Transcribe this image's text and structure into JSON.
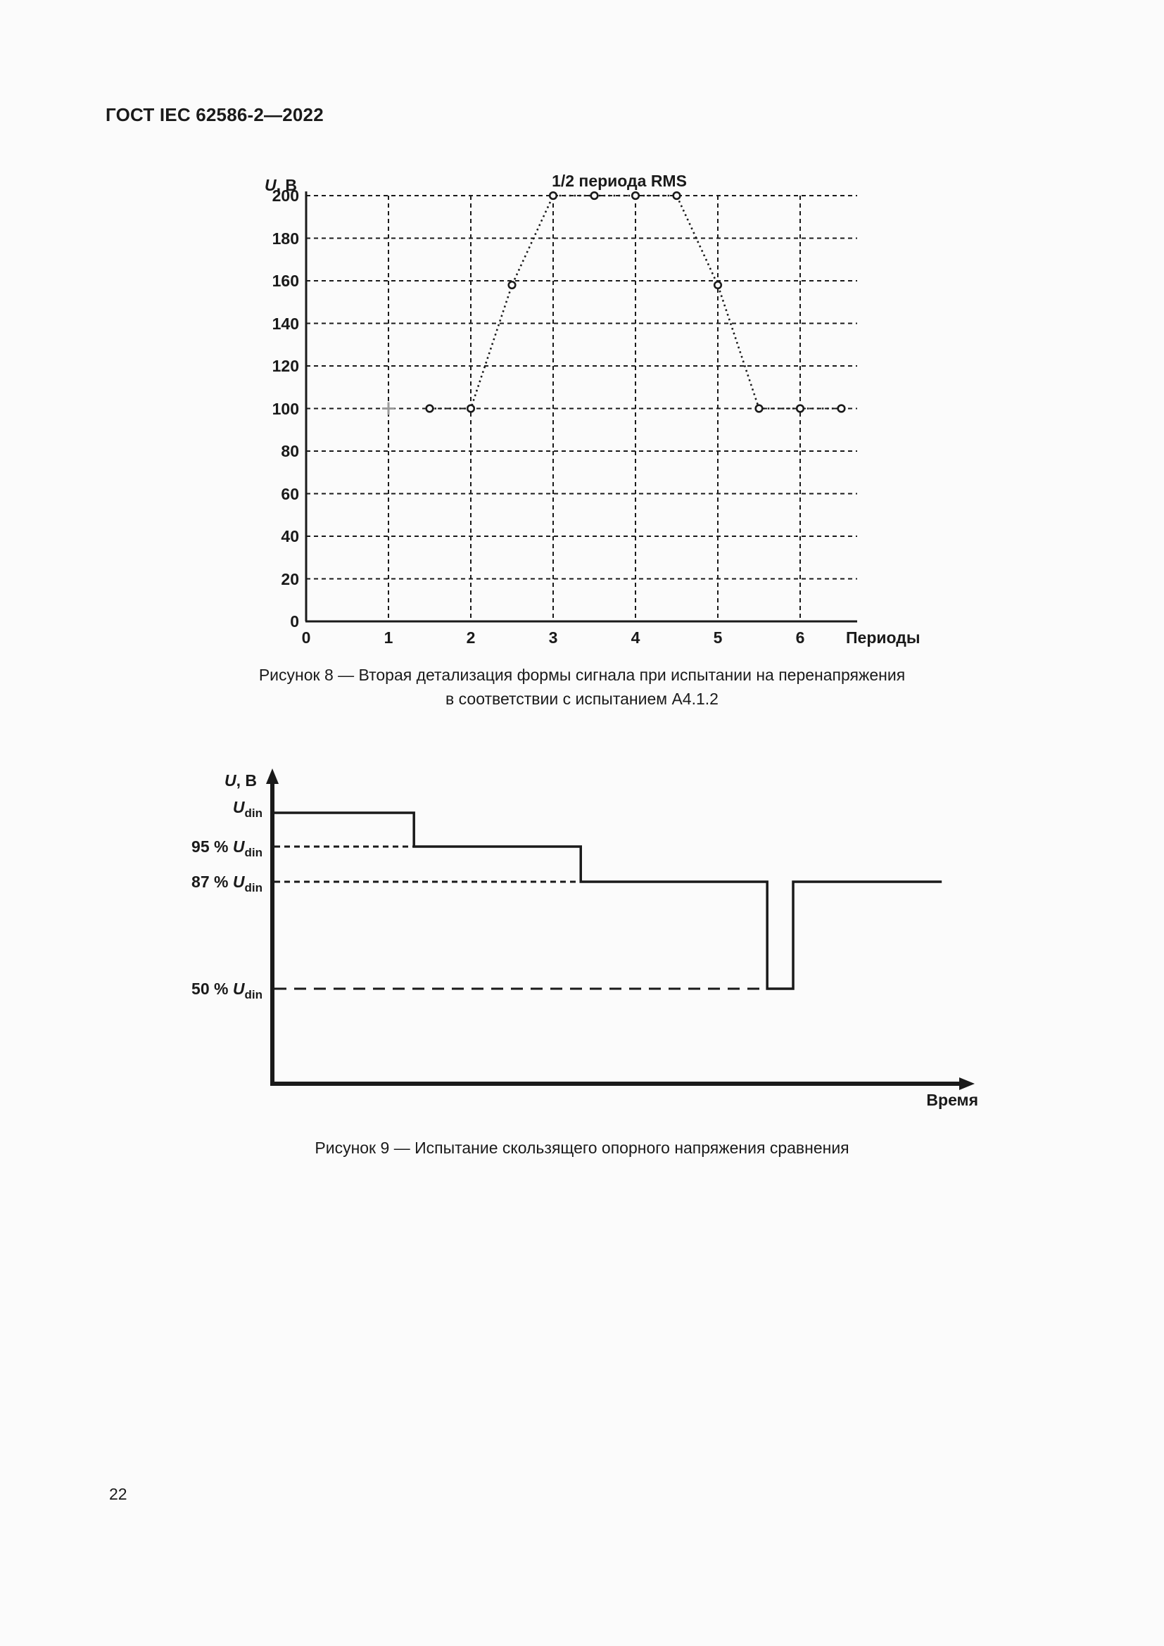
{
  "page": {
    "header": "ГОСТ IEC 62586-2—2022",
    "page_number": "22"
  },
  "figure8": {
    "caption_line1": "Рисунок 8 — Вторая детализация формы сигнала при испытании на перенапряжения",
    "caption_line2": "в соответствии с испытанием А4.1.2"
  },
  "figure9": {
    "caption": "Рисунок 9 — Испытание скользящего опорного напряжения сравнения"
  },
  "chart_data": [
    {
      "type": "line",
      "title": "1/2 периода RMS",
      "ylabel_italic": "U",
      "ylabel_rest": ", В",
      "xlabel": "Периоды",
      "x": [
        1.5,
        2,
        2.5,
        3,
        3.5,
        4,
        4.5,
        5,
        5.5,
        6,
        6.5
      ],
      "values": [
        100,
        100,
        158,
        200,
        200,
        200,
        200,
        158,
        100,
        100,
        100
      ],
      "xticks": [
        0,
        1,
        2,
        3,
        4,
        5,
        6
      ],
      "yticks": [
        0,
        20,
        40,
        60,
        80,
        100,
        120,
        140,
        160,
        180,
        200
      ],
      "xlim": [
        0,
        6.7
      ],
      "ylim": [
        0,
        200
      ],
      "grid": true,
      "line_style": "dotted",
      "marker": "circle",
      "start_marker": {
        "shape": "plus",
        "x": 1,
        "y": 100,
        "color": "#9b9b9b"
      },
      "line_color": "#1a1a1a"
    },
    {
      "type": "line",
      "subtype": "step",
      "ylabel_italic": "U",
      "ylabel_rest": ", В",
      "xlabel": "Время",
      "levels": [
        {
          "value": 100,
          "prefix": "",
          "symbol": "U",
          "subscript": "din"
        },
        {
          "value": 95,
          "prefix": "95 % ",
          "symbol": "U",
          "subscript": "din"
        },
        {
          "value": 87,
          "prefix": "87 % ",
          "symbol": "U",
          "subscript": "din"
        },
        {
          "value": 50,
          "prefix": "50 % ",
          "symbol": "U",
          "subscript": "din"
        }
      ],
      "points_pct": [
        [
          0,
          100
        ],
        [
          0.202,
          100
        ],
        [
          0.202,
          95
        ],
        [
          0.44,
          95
        ],
        [
          0.44,
          87
        ],
        [
          0.706,
          87
        ],
        [
          0.706,
          50
        ],
        [
          0.743,
          50
        ],
        [
          0.743,
          87
        ],
        [
          0.955,
          87
        ]
      ],
      "guide_lines": [
        {
          "level": 95,
          "to_x": 0.202
        },
        {
          "level": 87,
          "to_x": 0.44
        },
        {
          "level": 50,
          "to_x": 0.706
        }
      ],
      "line_color": "#1a1a1a"
    }
  ]
}
